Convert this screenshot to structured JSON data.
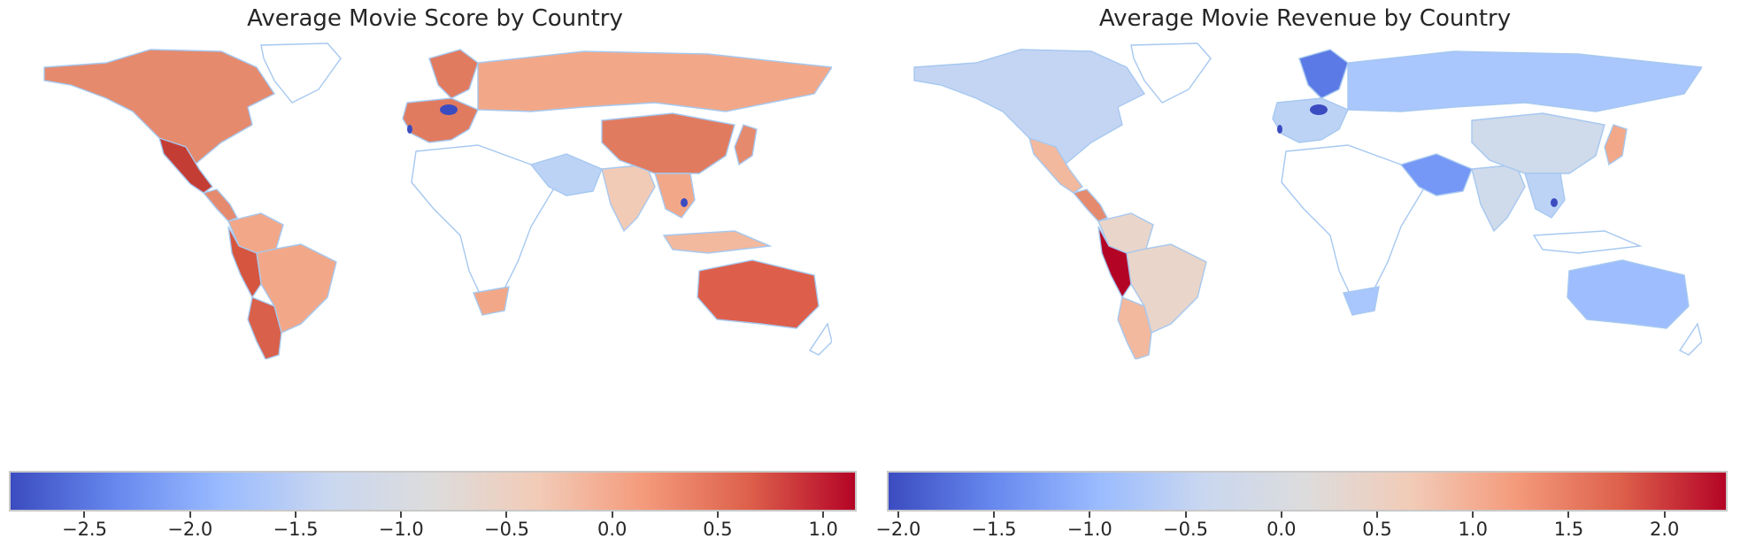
{
  "panels": [
    {
      "title": "Average Movie Score by Country",
      "colorbar": {
        "min": -2.85,
        "max": 1.15,
        "ticks": [
          "−2.5",
          "−2.0",
          "−1.5",
          "−1.0",
          "−0.5",
          "0.0",
          "0.5",
          "1.0"
        ],
        "tick_values": [
          -2.5,
          -2.0,
          -1.5,
          -1.0,
          -0.5,
          0.0,
          0.5,
          1.0
        ]
      },
      "regions": {
        "north-america": "#e58a6d",
        "greenland": "#ffffff",
        "mexico": "#c43d35",
        "central-america": "#e58a6d",
        "south-america-north": "#f2a888",
        "brazil": "#f2a888",
        "andes": "#d6553f",
        "argentina": "#d9604a",
        "europe": "#e17b60",
        "scandinavia": "#e17b60",
        "russia": "#f2a888",
        "africa": "#ffffff",
        "middle-east": "#bcd3f6",
        "india": "#f2cbb6",
        "china": "#e17b60",
        "japan": "#e58a6d",
        "se-asia": "#f2a888",
        "indonesia": "#f2b99e",
        "australia": "#dd5f4b",
        "south-africa": "#f2a888",
        "new-zealand": "#ffffff",
        "accent-dark": "#3b4cc0"
      }
    },
    {
      "title": "Average Movie Revenue by Country",
      "colorbar": {
        "min": -2.05,
        "max": 2.32,
        "ticks": [
          "−2.0",
          "−1.5",
          "−1.0",
          "−0.5",
          "0.0",
          "0.5",
          "1.0",
          "1.5",
          "2.0"
        ],
        "tick_values": [
          -2.0,
          -1.5,
          -1.0,
          -0.5,
          0.0,
          0.5,
          1.0,
          1.5,
          2.0
        ]
      },
      "regions": {
        "north-america": "#c4d5f3",
        "greenland": "#ffffff",
        "mexico": "#f2b99e",
        "central-america": "#e58a6d",
        "south-america-north": "#e9d5c9",
        "brazil": "#e9d5c9",
        "andes": "#b40426",
        "argentina": "#f2b99e",
        "europe": "#bcd3f6",
        "scandinavia": "#5b7ae5",
        "russia": "#a9c6fd",
        "africa": "#ffffff",
        "middle-east": "#7597f6",
        "india": "#cfdaea",
        "china": "#cfdaea",
        "japan": "#f2a888",
        "se-asia": "#bcd3f6",
        "indonesia": "#ffffff",
        "australia": "#9dbdff",
        "south-africa": "#a9c6fd",
        "new-zealand": "#ffffff",
        "accent-dark": "#3b4cc0"
      }
    }
  ],
  "colormap": "coolwarm",
  "colormap_stops": [
    "#3b4cc0",
    "#6788ee",
    "#9abbff",
    "#c9d7f0",
    "#dddcdc",
    "#f2cbb7",
    "#f49a7b",
    "#dd604b",
    "#b40426"
  ],
  "border_color": "#a6c8f0"
}
